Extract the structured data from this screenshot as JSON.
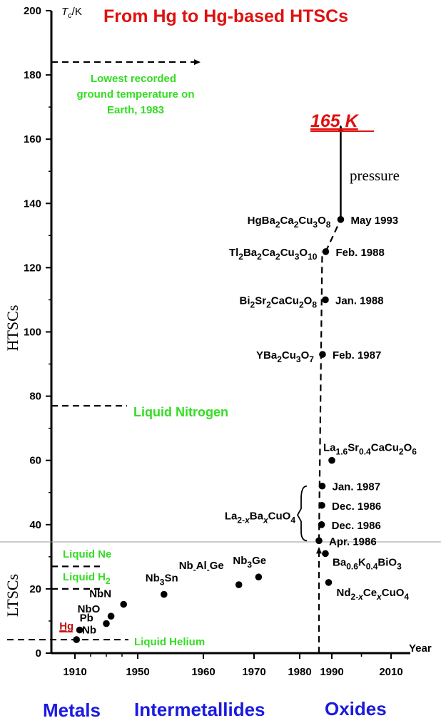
{
  "chart_data": {
    "type": "scatter",
    "title": "From Hg to Hg-based HTSCs",
    "xlabel": "Year",
    "ylabel": "Tc/K",
    "xlim": [
      1900,
      2010
    ],
    "ylim": [
      0,
      200
    ],
    "xticks": [
      1910,
      1950,
      1960,
      1970,
      1980,
      1990,
      2010
    ],
    "yticks": [
      0,
      20,
      40,
      60,
      80,
      100,
      120,
      140,
      160,
      180,
      200
    ],
    "points": [
      {
        "label": "Hg",
        "x": 1911,
        "y": 4.2
      },
      {
        "label": "Pb",
        "x": 1913,
        "y": 7.2
      },
      {
        "label": "Nb",
        "x": 1930,
        "y": 9.2
      },
      {
        "label": "NbO",
        "x": 1933,
        "y": 11.5
      },
      {
        "label": "NbN",
        "x": 1941,
        "y": 15.2
      },
      {
        "label": "Nb3Sn",
        "x": 1954,
        "y": 18.3
      },
      {
        "label": "Nb-Al-Ge",
        "x": 1967,
        "y": 21.3
      },
      {
        "label": "Nb3Ge",
        "x": 1971,
        "y": 23.7
      },
      {
        "label": "Ba0.6K0.4BiO3",
        "x": 1988,
        "y": 31
      },
      {
        "label": "Nd2-xCexCuO4",
        "x": 1989,
        "y": 22
      },
      {
        "label": "La2-xBaxCuO4",
        "date": "Apr. 1986",
        "x": 1986,
        "y": 35
      },
      {
        "label": "La2-xBaxCuO4",
        "date": "Dec. 1986",
        "x": 1986.8,
        "y": 40
      },
      {
        "label": "La2-xBaxCuO4",
        "date": "Dec. 1986",
        "x": 1986.9,
        "y": 46
      },
      {
        "label": "La2-xBaxCuO4",
        "date": "Jan. 1987",
        "x": 1987,
        "y": 52
      },
      {
        "label": "La1.6Sr0.4CaCu2O6",
        "x": 1990,
        "y": 60
      },
      {
        "label": "YBa2Cu3O7",
        "date": "Feb. 1987",
        "x": 1987.1,
        "y": 93
      },
      {
        "label": "Bi2Sr2CaCu2O8",
        "date": "Jan. 1988",
        "x": 1988,
        "y": 110
      },
      {
        "label": "Tl2Ba2Ca2Cu3O10",
        "date": "Feb. 1988",
        "x": 1988.1,
        "y": 125
      },
      {
        "label": "HgBa2Ca2Cu3O8",
        "date": "May 1993",
        "x": 1993,
        "y": 135
      }
    ],
    "reference_lines": [
      {
        "name": "Lowest recorded ground temperature on Earth, 1983",
        "y": 184
      },
      {
        "name": "Liquid Nitrogen",
        "y": 77
      },
      {
        "name": "Liquid Ne",
        "y": 27
      },
      {
        "name": "Liquid H2",
        "y": 20
      },
      {
        "name": "Liquid Helium",
        "y": 4.2
      }
    ],
    "pressure_record": {
      "label": "165 K",
      "y": 165,
      "annotation": "pressure"
    },
    "regions": [
      "HTSCs",
      "LTSCs"
    ],
    "eras": [
      "Metals",
      "Intermetallides",
      "Oxides"
    ]
  },
  "colors": {
    "title": "#e01010",
    "green": "#33dd22",
    "blue": "#1a1adf",
    "hg": "#c01010"
  },
  "labels": {
    "title": "From Hg to Hg-based HTSCs",
    "ylabel_T": "T",
    "ylabel_sub": "c",
    "ylabel_unit": "/K",
    "xlabel": "Year",
    "htscs": "HTSCs",
    "ltscs": "LTSCs",
    "lowest_temp_1": "Lowest recorded",
    "lowest_temp_2": "ground temperature on",
    "lowest_temp_3": "Earth, 1983",
    "liquid_nitrogen": "Liquid Nitrogen",
    "liquid_ne": "Liquid Ne",
    "liquid_h": "Liquid H",
    "liquid_h_sub": "2",
    "liquid_helium": "Liquid Helium",
    "record": "165 K",
    "pressure": "pressure",
    "metals": "Metals",
    "intermetallides": "Intermetallides",
    "oxides": "Oxides"
  }
}
